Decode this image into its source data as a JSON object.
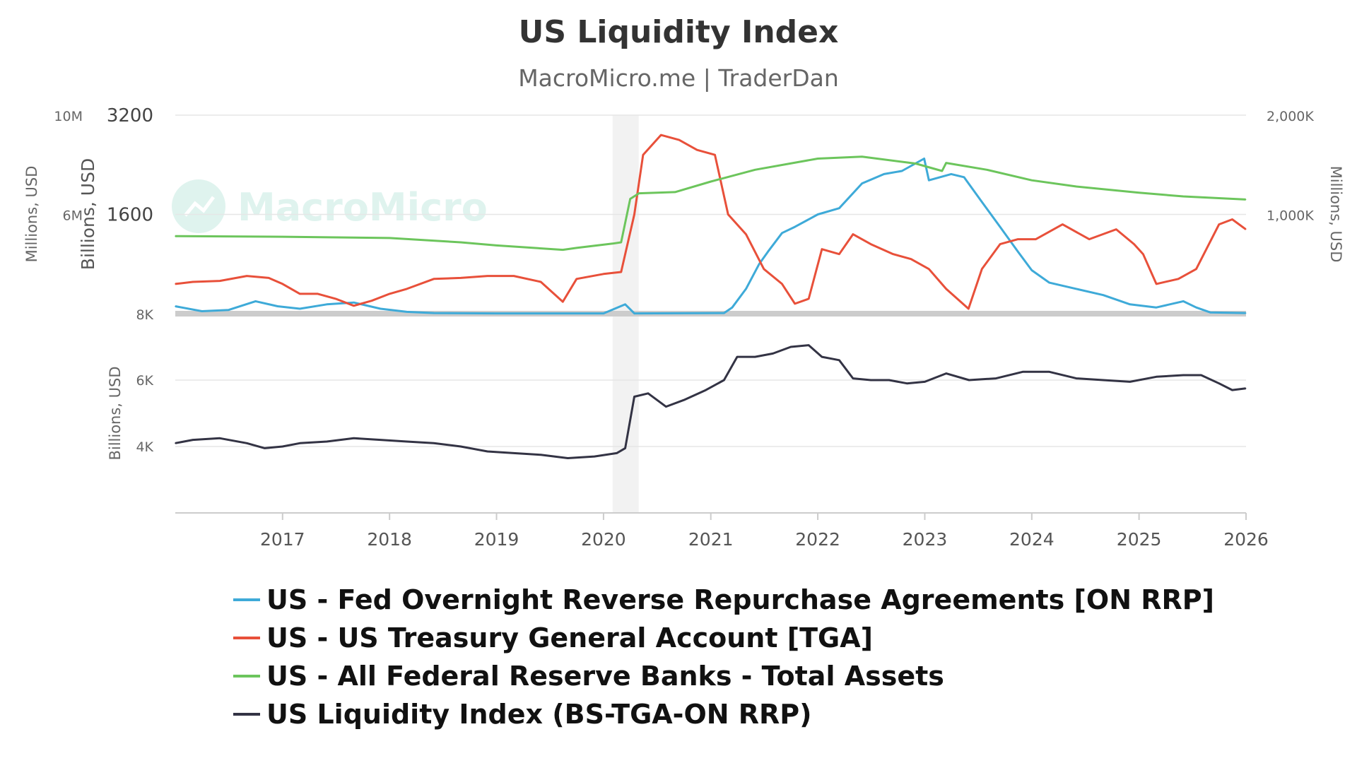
{
  "chart_data": {
    "type": "line",
    "title": "US Liquidity Index",
    "subtitle": "MacroMicro.me | TraderDan",
    "watermark": "MacroMicro",
    "x_range": [
      "2016-01-01",
      "2026-01-01"
    ],
    "x_ticks": [
      "2017",
      "2018",
      "2019",
      "2020",
      "2021",
      "2022",
      "2023",
      "2024",
      "2025",
      "2026"
    ],
    "recession_band": {
      "from": "2020-02-01",
      "to": "2020-04-30",
      "color": "#f2f2f2"
    },
    "grid": true,
    "legend_position": "bottom",
    "panels": {
      "top": {
        "left_axis_outer": {
          "title": "Millions, USD",
          "ticks": [
            "10M",
            "6M",
            "8K"
          ]
        },
        "left_axis_inner": {
          "title": "Billions, USD",
          "ticks": [
            "3200",
            "1600"
          ],
          "ylim": [
            0,
            3200
          ]
        },
        "right_axis": {
          "title": "Millions, USD",
          "ticks": [
            "2,000K",
            "1,000K"
          ],
          "ylim": [
            0,
            2000
          ]
        }
      },
      "bottom": {
        "left_axis": {
          "title": "Billions, USD",
          "ticks": [
            "6K",
            "4K"
          ],
          "ylim": [
            2000,
            8000
          ]
        }
      }
    },
    "series": [
      {
        "name": "US - Fed Overnight Reverse Repurchase Agreements [ON RRP]",
        "color": "#3eaad8",
        "panel": "top",
        "axis": "left_axis_inner",
        "points": [
          [
            "2016-01-01",
            120
          ],
          [
            "2016-04-01",
            40
          ],
          [
            "2016-07-01",
            60
          ],
          [
            "2016-10-01",
            200
          ],
          [
            "2016-12-15",
            120
          ],
          [
            "2017-03-01",
            80
          ],
          [
            "2017-06-01",
            150
          ],
          [
            "2017-09-01",
            180
          ],
          [
            "2017-12-01",
            80
          ],
          [
            "2018-03-01",
            30
          ],
          [
            "2018-06-01",
            10
          ],
          [
            "2019-01-01",
            5
          ],
          [
            "2020-01-01",
            5
          ],
          [
            "2020-03-15",
            150
          ],
          [
            "2020-04-15",
            5
          ],
          [
            "2021-02-15",
            10
          ],
          [
            "2021-03-15",
            100
          ],
          [
            "2021-05-01",
            400
          ],
          [
            "2021-06-15",
            800
          ],
          [
            "2021-07-15",
            1000
          ],
          [
            "2021-09-01",
            1300
          ],
          [
            "2021-10-15",
            1400
          ],
          [
            "2022-01-01",
            1600
          ],
          [
            "2022-03-15",
            1700
          ],
          [
            "2022-06-01",
            2100
          ],
          [
            "2022-08-15",
            2250
          ],
          [
            "2022-10-15",
            2300
          ],
          [
            "2022-12-30",
            2500
          ],
          [
            "2023-01-15",
            2150
          ],
          [
            "2023-04-01",
            2250
          ],
          [
            "2023-05-15",
            2200
          ],
          [
            "2023-07-15",
            1800
          ],
          [
            "2023-09-15",
            1400
          ],
          [
            "2023-11-15",
            1000
          ],
          [
            "2024-01-01",
            700
          ],
          [
            "2024-03-01",
            500
          ],
          [
            "2024-06-01",
            400
          ],
          [
            "2024-09-01",
            300
          ],
          [
            "2024-12-01",
            150
          ],
          [
            "2025-03-01",
            100
          ],
          [
            "2025-06-01",
            200
          ],
          [
            "2025-07-15",
            100
          ],
          [
            "2025-09-01",
            20
          ],
          [
            "2025-12-31",
            10
          ]
        ]
      },
      {
        "name": "US - US Treasury General Account [TGA]",
        "color": "#e8503a",
        "panel": "top",
        "axis": "right_axis",
        "points": [
          [
            "2016-01-01",
            300
          ],
          [
            "2016-03-01",
            320
          ],
          [
            "2016-06-01",
            330
          ],
          [
            "2016-09-01",
            380
          ],
          [
            "2016-11-15",
            360
          ],
          [
            "2017-01-01",
            300
          ],
          [
            "2017-03-01",
            200
          ],
          [
            "2017-05-01",
            200
          ],
          [
            "2017-07-01",
            150
          ],
          [
            "2017-09-01",
            80
          ],
          [
            "2017-11-01",
            130
          ],
          [
            "2018-01-01",
            200
          ],
          [
            "2018-03-01",
            250
          ],
          [
            "2018-06-01",
            350
          ],
          [
            "2018-09-01",
            360
          ],
          [
            "2018-12-01",
            380
          ],
          [
            "2019-03-01",
            380
          ],
          [
            "2019-06-01",
            320
          ],
          [
            "2019-08-15",
            120
          ],
          [
            "2019-10-01",
            350
          ],
          [
            "2020-01-01",
            400
          ],
          [
            "2020-03-01",
            420
          ],
          [
            "2020-04-15",
            1000
          ],
          [
            "2020-05-15",
            1600
          ],
          [
            "2020-07-15",
            1800
          ],
          [
            "2020-09-15",
            1750
          ],
          [
            "2020-11-15",
            1650
          ],
          [
            "2021-01-15",
            1600
          ],
          [
            "2021-03-01",
            1000
          ],
          [
            "2021-05-01",
            800
          ],
          [
            "2021-07-01",
            450
          ],
          [
            "2021-09-01",
            300
          ],
          [
            "2021-10-15",
            100
          ],
          [
            "2021-12-01",
            150
          ],
          [
            "2022-01-15",
            650
          ],
          [
            "2022-03-15",
            600
          ],
          [
            "2022-05-01",
            800
          ],
          [
            "2022-07-01",
            700
          ],
          [
            "2022-09-15",
            600
          ],
          [
            "2022-11-15",
            550
          ],
          [
            "2023-01-15",
            450
          ],
          [
            "2023-03-15",
            250
          ],
          [
            "2023-05-30",
            50
          ],
          [
            "2023-07-15",
            450
          ],
          [
            "2023-09-15",
            700
          ],
          [
            "2023-11-15",
            750
          ],
          [
            "2024-01-15",
            750
          ],
          [
            "2024-04-15",
            900
          ],
          [
            "2024-07-15",
            750
          ],
          [
            "2024-10-15",
            850
          ],
          [
            "2024-12-15",
            700
          ],
          [
            "2025-01-15",
            600
          ],
          [
            "2025-03-01",
            300
          ],
          [
            "2025-05-15",
            350
          ],
          [
            "2025-07-15",
            450
          ],
          [
            "2025-10-01",
            900
          ],
          [
            "2025-11-15",
            950
          ],
          [
            "2025-12-31",
            850
          ]
        ]
      },
      {
        "name": "US - All Federal Reserve Banks - Total Assets",
        "color": "#6cc55c",
        "panel": "top",
        "axis": "left_axis_inner",
        "points": [
          [
            "2016-01-01",
            1250
          ],
          [
            "2017-01-01",
            1240
          ],
          [
            "2018-01-01",
            1220
          ],
          [
            "2018-09-01",
            1150
          ],
          [
            "2019-01-01",
            1100
          ],
          [
            "2019-08-15",
            1030
          ],
          [
            "2019-10-01",
            1060
          ],
          [
            "2020-02-01",
            1130
          ],
          [
            "2020-03-01",
            1150
          ],
          [
            "2020-04-01",
            1850
          ],
          [
            "2020-05-01",
            1940
          ],
          [
            "2020-09-01",
            1960
          ],
          [
            "2021-01-01",
            2130
          ],
          [
            "2021-06-01",
            2320
          ],
          [
            "2022-01-01",
            2500
          ],
          [
            "2022-06-01",
            2530
          ],
          [
            "2022-12-01",
            2420
          ],
          [
            "2023-03-01",
            2300
          ],
          [
            "2023-03-15",
            2430
          ],
          [
            "2023-08-01",
            2320
          ],
          [
            "2024-01-01",
            2150
          ],
          [
            "2024-06-01",
            2050
          ],
          [
            "2025-01-01",
            1950
          ],
          [
            "2025-06-01",
            1890
          ],
          [
            "2025-12-31",
            1840
          ]
        ]
      },
      {
        "name": "US Liquidity Index (BS-TGA-ON RRP)",
        "color": "#333344",
        "panel": "bottom",
        "axis": "left_axis",
        "points": [
          [
            "2016-01-01",
            4100
          ],
          [
            "2016-03-01",
            4200
          ],
          [
            "2016-06-01",
            4250
          ],
          [
            "2016-09-01",
            4100
          ],
          [
            "2016-11-01",
            3950
          ],
          [
            "2017-01-01",
            4000
          ],
          [
            "2017-03-01",
            4100
          ],
          [
            "2017-06-01",
            4150
          ],
          [
            "2017-09-01",
            4250
          ],
          [
            "2017-12-01",
            4200
          ],
          [
            "2018-03-01",
            4150
          ],
          [
            "2018-06-01",
            4100
          ],
          [
            "2018-09-01",
            4000
          ],
          [
            "2018-12-01",
            3850
          ],
          [
            "2019-03-01",
            3800
          ],
          [
            "2019-06-01",
            3750
          ],
          [
            "2019-09-01",
            3650
          ],
          [
            "2019-12-01",
            3700
          ],
          [
            "2020-02-15",
            3800
          ],
          [
            "2020-03-15",
            3950
          ],
          [
            "2020-04-15",
            5500
          ],
          [
            "2020-06-01",
            5600
          ],
          [
            "2020-08-01",
            5200
          ],
          [
            "2020-10-01",
            5400
          ],
          [
            "2020-12-15",
            5700
          ],
          [
            "2021-02-15",
            6000
          ],
          [
            "2021-04-01",
            6700
          ],
          [
            "2021-06-01",
            6700
          ],
          [
            "2021-08-01",
            6800
          ],
          [
            "2021-10-01",
            7000
          ],
          [
            "2021-12-01",
            7050
          ],
          [
            "2022-01-15",
            6700
          ],
          [
            "2022-03-15",
            6600
          ],
          [
            "2022-05-01",
            6050
          ],
          [
            "2022-07-01",
            6000
          ],
          [
            "2022-09-01",
            6000
          ],
          [
            "2022-11-01",
            5900
          ],
          [
            "2023-01-01",
            5950
          ],
          [
            "2023-03-15",
            6200
          ],
          [
            "2023-06-01",
            6000
          ],
          [
            "2023-09-01",
            6050
          ],
          [
            "2023-12-01",
            6250
          ],
          [
            "2024-03-01",
            6250
          ],
          [
            "2024-06-01",
            6050
          ],
          [
            "2024-09-01",
            6000
          ],
          [
            "2024-12-01",
            5950
          ],
          [
            "2025-03-01",
            6100
          ],
          [
            "2025-06-01",
            6150
          ],
          [
            "2025-08-01",
            6150
          ],
          [
            "2025-10-01",
            5900
          ],
          [
            "2025-11-15",
            5700
          ],
          [
            "2025-12-31",
            5750
          ]
        ]
      }
    ]
  }
}
